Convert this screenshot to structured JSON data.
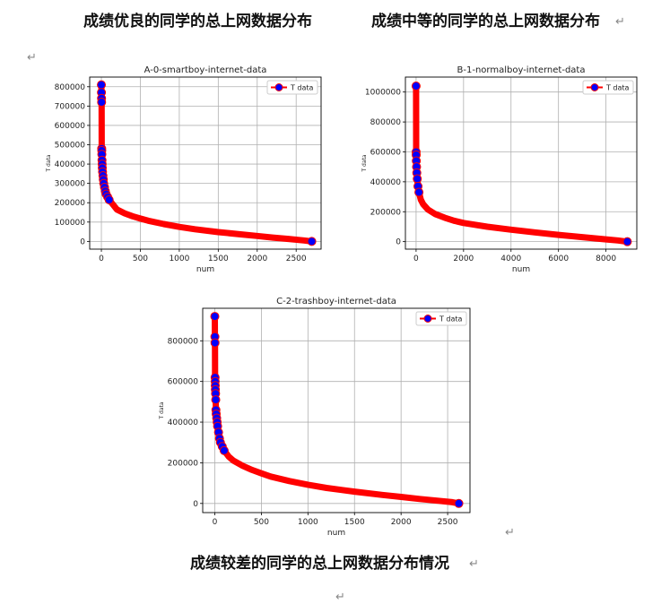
{
  "captions": {
    "top_left": "成绩优良的同学的总上网数据分布",
    "top_right": "成绩中等的同学的总上网数据分布",
    "bottom": "成绩较差的同学的总上网数据分布情况"
  },
  "return_mark": "↵",
  "chart_data": [
    {
      "type": "line",
      "title": "A-0-smartboy-internet-data",
      "xlabel": "num",
      "ylabel": "T data",
      "xlim": [
        -150,
        2820
      ],
      "ylim": [
        -40000,
        850000
      ],
      "xticks": [
        0,
        500,
        1000,
        1500,
        2000,
        2500
      ],
      "yticks": [
        0,
        100000,
        200000,
        300000,
        400000,
        500000,
        600000,
        700000,
        800000
      ],
      "grid": true,
      "legend_position": "top-right",
      "colors": {
        "line": "#ff0000",
        "marker_face": "#0000ff",
        "marker_edge": "#ff0000"
      },
      "series": [
        {
          "name": "T data",
          "x": [
            0,
            1,
            2,
            3,
            4,
            5,
            6,
            8,
            10,
            12,
            15,
            20,
            25,
            30,
            40,
            50,
            60,
            80,
            100,
            150,
            200,
            300,
            400,
            500,
            600,
            800,
            1000,
            1200,
            1500,
            1800,
            2000,
            2200,
            2400,
            2600,
            2700
          ],
          "y": [
            810000,
            770000,
            740000,
            720000,
            480000,
            470000,
            450000,
            420000,
            400000,
            380000,
            360000,
            340000,
            320000,
            300000,
            280000,
            260000,
            245000,
            230000,
            215000,
            190000,
            165000,
            145000,
            130000,
            118000,
            107000,
            90000,
            75000,
            63000,
            48000,
            36000,
            28000,
            20000,
            13000,
            5000,
            0
          ]
        }
      ]
    },
    {
      "type": "line",
      "title": "B-1-normalboy-internet-data",
      "xlabel": "num",
      "ylabel": "T data",
      "xlim": [
        -450,
        9300
      ],
      "ylim": [
        -50000,
        1100000
      ],
      "xticks": [
        0,
        2000,
        4000,
        6000,
        8000
      ],
      "yticks": [
        0,
        200000,
        400000,
        600000,
        800000,
        1000000
      ],
      "grid": true,
      "legend_position": "top-right",
      "colors": {
        "line": "#ff0000",
        "marker_face": "#0000ff",
        "marker_edge": "#ff0000"
      },
      "series": [
        {
          "name": "T data",
          "x": [
            0,
            2,
            5,
            10,
            20,
            30,
            50,
            80,
            120,
            200,
            300,
            500,
            800,
            1200,
            1600,
            2000,
            3000,
            4000,
            5000,
            6000,
            7000,
            8000,
            8500,
            8900
          ],
          "y": [
            1040000,
            600000,
            580000,
            540000,
            500000,
            460000,
            420000,
            370000,
            330000,
            280000,
            250000,
            215000,
            185000,
            160000,
            140000,
            125000,
            100000,
            80000,
            62000,
            45000,
            30000,
            15000,
            8000,
            0
          ]
        }
      ]
    },
    {
      "type": "line",
      "title": "C-2-trashboy-internet-data",
      "xlabel": "num",
      "ylabel": "T data",
      "xlim": [
        -130,
        2740
      ],
      "ylim": [
        -45000,
        960000
      ],
      "xticks": [
        0,
        500,
        1000,
        1500,
        2000,
        2500
      ],
      "yticks": [
        0,
        200000,
        400000,
        600000,
        800000
      ],
      "grid": true,
      "legend_position": "top-right",
      "colors": {
        "line": "#ff0000",
        "marker_face": "#0000ff",
        "marker_edge": "#ff0000"
      },
      "series": [
        {
          "name": "T data",
          "x": [
            0,
            1,
            2,
            3,
            4,
            5,
            6,
            8,
            10,
            12,
            15,
            20,
            25,
            30,
            40,
            50,
            60,
            80,
            100,
            150,
            200,
            300,
            400,
            500,
            600,
            800,
            1000,
            1200,
            1500,
            1800,
            2000,
            2200,
            2400,
            2550,
            2620
          ],
          "y": [
            920000,
            820000,
            790000,
            620000,
            600000,
            580000,
            560000,
            540000,
            510000,
            460000,
            440000,
            420000,
            400000,
            380000,
            350000,
            320000,
            300000,
            280000,
            260000,
            230000,
            210000,
            185000,
            165000,
            148000,
            132000,
            110000,
            92000,
            76000,
            58000,
            42000,
            32000,
            22000,
            13000,
            6000,
            0
          ]
        }
      ]
    }
  ]
}
